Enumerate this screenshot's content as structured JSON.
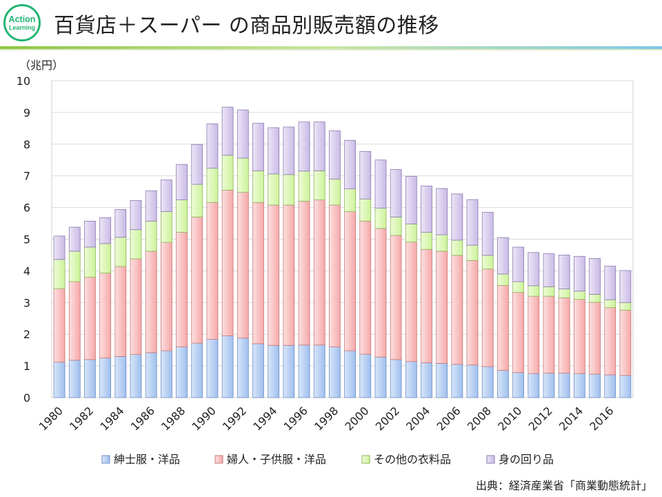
{
  "header": {
    "title": "百貨店＋スーパー の商品別販売額の推移",
    "logo_line1": "Action",
    "logo_line2": "Learning"
  },
  "source": "出典：経済産業省「商業動態統計」",
  "colors": {
    "accent": "#22b573",
    "series": [
      [
        "#d9e6f9",
        "#9fbfee",
        "#6c8ec4"
      ],
      [
        "#fde0e0",
        "#f5a8a8",
        "#c77777"
      ],
      [
        "#eefcd8",
        "#cdf29a",
        "#8db55c"
      ],
      [
        "#ece6f6",
        "#c9bae6",
        "#8b7ab0"
      ]
    ]
  },
  "chart_data": {
    "type": "bar",
    "stacked": true,
    "ylabel": "（兆円）",
    "ylim": [
      0,
      10
    ],
    "yticks": [
      "0",
      "1",
      "2",
      "3",
      "4",
      "5",
      "6",
      "7",
      "8",
      "9",
      "10"
    ],
    "grid": true,
    "legend_position": "bottom",
    "categories": [
      "1980",
      "1981",
      "1982",
      "1983",
      "1984",
      "1985",
      "1986",
      "1987",
      "1988",
      "1989",
      "1990",
      "1991",
      "1992",
      "1993",
      "1994",
      "1995",
      "1996",
      "1997",
      "1998",
      "1999",
      "2000",
      "2001",
      "2002",
      "2003",
      "2004",
      "2005",
      "2006",
      "2007",
      "2008",
      "2009",
      "2010",
      "2011",
      "2012",
      "2013",
      "2014",
      "2015",
      "2016",
      "2017"
    ],
    "xtick_labels": [
      "1980",
      "1982",
      "1984",
      "1986",
      "1988",
      "1990",
      "1992",
      "1994",
      "1996",
      "1998",
      "2000",
      "2002",
      "2004",
      "2006",
      "2008",
      "2010",
      "2012",
      "2014",
      "2016"
    ],
    "series": [
      {
        "name": "紳士服・洋品",
        "values": [
          1.12,
          1.18,
          1.2,
          1.25,
          1.3,
          1.36,
          1.42,
          1.48,
          1.6,
          1.72,
          1.84,
          1.95,
          1.88,
          1.7,
          1.65,
          1.65,
          1.66,
          1.66,
          1.6,
          1.48,
          1.37,
          1.28,
          1.2,
          1.14,
          1.1,
          1.08,
          1.05,
          1.03,
          0.98,
          0.86,
          0.79,
          0.76,
          0.77,
          0.77,
          0.76,
          0.74,
          0.72,
          0.7
        ]
      },
      {
        "name": "婦人・子供服・洋品",
        "values": [
          2.32,
          2.48,
          2.6,
          2.68,
          2.84,
          3.02,
          3.2,
          3.42,
          3.62,
          3.98,
          4.32,
          4.6,
          4.6,
          4.46,
          4.43,
          4.43,
          4.54,
          4.58,
          4.48,
          4.39,
          4.2,
          4.06,
          3.92,
          3.77,
          3.58,
          3.54,
          3.44,
          3.3,
          3.08,
          2.68,
          2.53,
          2.44,
          2.43,
          2.38,
          2.34,
          2.27,
          2.12,
          2.06
        ]
      },
      {
        "name": "その他の衣料品",
        "values": [
          0.92,
          0.96,
          0.95,
          0.93,
          0.92,
          0.92,
          0.95,
          0.97,
          1.02,
          1.03,
          1.08,
          1.1,
          1.08,
          1.0,
          0.98,
          0.96,
          0.95,
          0.92,
          0.82,
          0.72,
          0.7,
          0.64,
          0.58,
          0.57,
          0.54,
          0.52,
          0.48,
          0.48,
          0.43,
          0.36,
          0.34,
          0.33,
          0.3,
          0.28,
          0.26,
          0.25,
          0.25,
          0.24
        ]
      },
      {
        "name": "身の回り品",
        "values": [
          0.74,
          0.76,
          0.82,
          0.82,
          0.88,
          0.92,
          0.96,
          1.0,
          1.12,
          1.26,
          1.4,
          1.52,
          1.52,
          1.5,
          1.46,
          1.5,
          1.55,
          1.54,
          1.52,
          1.53,
          1.5,
          1.52,
          1.5,
          1.5,
          1.46,
          1.46,
          1.46,
          1.44,
          1.36,
          1.15,
          1.09,
          1.05,
          1.04,
          1.07,
          1.1,
          1.13,
          1.06,
          1.01
        ]
      }
    ]
  }
}
